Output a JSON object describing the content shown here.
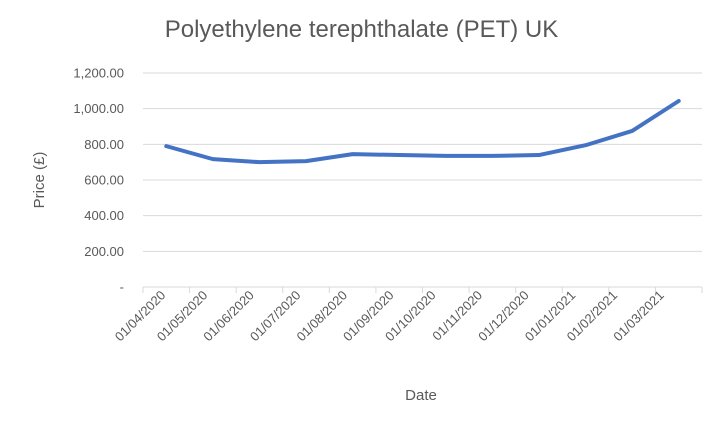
{
  "chart_data": {
    "type": "line",
    "title": "Polyethylene terephthalate (PET) UK",
    "xlabel": "Date",
    "ylabel": "Price (£)",
    "ylim": [
      0,
      1200
    ],
    "y_ticks": [
      {
        "value": 0,
        "label": "-"
      },
      {
        "value": 200,
        "label": "200.00"
      },
      {
        "value": 400,
        "label": "400.00"
      },
      {
        "value": 600,
        "label": "600.00"
      },
      {
        "value": 800,
        "label": "800.00"
      },
      {
        "value": 1000,
        "label": "1,000.00"
      },
      {
        "value": 1200,
        "label": "1,200.00"
      }
    ],
    "categories": [
      "01/04/2020",
      "01/05/2020",
      "01/06/2020",
      "01/07/2020",
      "01/08/2020",
      "01/09/2020",
      "01/10/2020",
      "01/11/2020",
      "01/12/2020",
      "01/01/2021",
      "01/02/2021",
      "01/03/2021"
    ],
    "x_ticks": [
      {
        "label": "01/04/2020",
        "pos": 0.0
      },
      {
        "label": "01/05/2020",
        "pos": 0.9
      },
      {
        "label": "01/06/2020",
        "pos": 1.9
      },
      {
        "label": "01/07/2020",
        "pos": 2.9
      },
      {
        "label": "01/08/2020",
        "pos": 3.9
      },
      {
        "label": "01/09/2020",
        "pos": 4.9
      },
      {
        "label": "01/10/2020",
        "pos": 5.8
      },
      {
        "label": "01/11/2020",
        "pos": 6.8
      },
      {
        "label": "01/12/2020",
        "pos": 7.8
      },
      {
        "label": "01/01/2021",
        "pos": 8.8
      },
      {
        "label": "01/02/2021",
        "pos": 9.7
      },
      {
        "label": "01/03/2021",
        "pos": 10.7
      }
    ],
    "series": [
      {
        "color": "#4472C4",
        "x": [
          0,
          1,
          2,
          3,
          4,
          5,
          6,
          7,
          8,
          9,
          10,
          11
        ],
        "values": [
          790,
          717,
          700,
          706,
          745,
          740,
          735,
          735,
          740,
          795,
          875,
          1043
        ]
      }
    ],
    "grid": true,
    "legend": "none"
  }
}
